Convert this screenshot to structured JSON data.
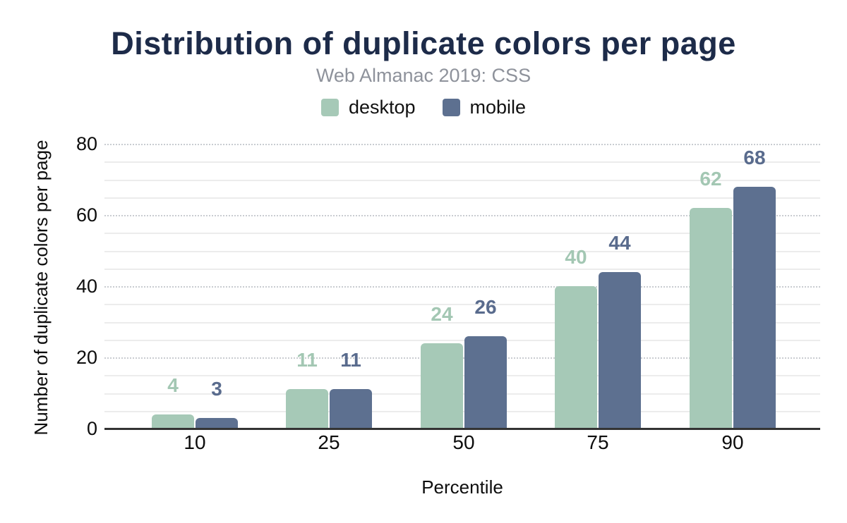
{
  "header": {
    "title": "Distribution of duplicate colors per page",
    "subtitle": "Web Almanac 2019: CSS"
  },
  "legend": {
    "items": [
      {
        "label": "desktop",
        "color": "#a6c9b7"
      },
      {
        "label": "mobile",
        "color": "#5d7090"
      }
    ]
  },
  "axes": {
    "x_title": "Percentile",
    "y_title": "Number of duplicate colors per page",
    "y_tick_labels": [
      "0",
      "20",
      "40",
      "60",
      "80"
    ],
    "x_tick_labels": [
      "10",
      "25",
      "50",
      "75",
      "90"
    ]
  },
  "chart_data": {
    "type": "bar",
    "title": "Distribution of duplicate colors per page",
    "subtitle": "Web Almanac 2019: CSS",
    "categories": [
      "10",
      "25",
      "50",
      "75",
      "90"
    ],
    "series": [
      {
        "name": "desktop",
        "color": "#a6c9b7",
        "label_color": "#a3c7b3",
        "values": [
          4,
          11,
          24,
          40,
          62
        ]
      },
      {
        "name": "mobile",
        "color": "#5d7090",
        "label_color": "#596b8d",
        "values": [
          3,
          11,
          26,
          44,
          68
        ]
      }
    ],
    "xlabel": "Percentile",
    "ylabel": "Number of duplicate colors per page",
    "ylim": [
      0,
      80
    ],
    "y_major_step": 20,
    "y_minor_step": 5,
    "grid": "horizontal, minor solid every 5, major dotted every 20",
    "legend_position": "top",
    "data_labels": "above bars, colored per series, bold"
  },
  "style": {
    "title_color": "#1d2b49",
    "subtitle_color": "#8e929b",
    "axis_text_color": "#0d0d0d",
    "baseline_color": "#333333",
    "minor_grid_color": "#ececec",
    "major_grid_color": "#c9ccd1"
  }
}
